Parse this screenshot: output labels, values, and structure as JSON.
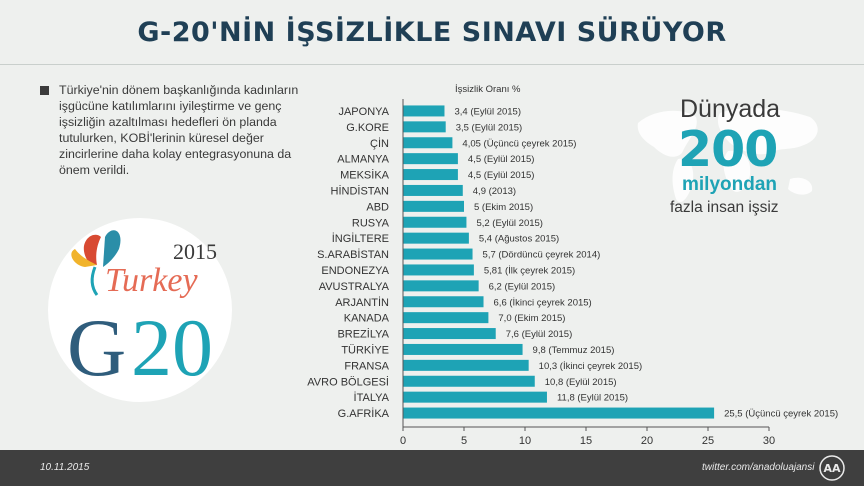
{
  "title": "G-20'NİN İŞSİZLİKLE SINAVI SÜRÜYOR",
  "description": "Türkiye'nin dönem başkanlığında kadınların işgücüne katılımlarını iyileştirme ve genç işsizliğin azaltılması hedefleri ön planda tutulurken, KOBİ'lerinin küresel değer zincirlerine daha kolay entegrasyonuna da önem verildi.",
  "logo": {
    "year": "2015",
    "word": "Turkey",
    "g": "G",
    "num": "20"
  },
  "callout": {
    "line1": "Dünyada",
    "line2": "200",
    "line3": "milyondan",
    "line4": "fazla insan işsiz"
  },
  "footer": {
    "date": "10.11.2015",
    "twitter": "twitter.com/anadoluajansi",
    "agency_logo": "AA"
  },
  "colors": {
    "bar": "#1ea3b5",
    "title": "#1f3f55",
    "footer": "#3f3f3f"
  },
  "chart_data": {
    "type": "bar",
    "orientation": "horizontal",
    "header": "İşsizlik Oranı %",
    "xlim": [
      0,
      30
    ],
    "ticks": [
      0,
      5,
      10,
      15,
      20,
      25,
      30
    ],
    "grid": false,
    "categories": [
      "JAPONYA",
      "G.KORE",
      "ÇİN",
      "ALMANYA",
      "MEKSİKA",
      "HİNDİSTAN",
      "ABD",
      "RUSYA",
      "İNGİLTERE",
      "S.ARABİSTAN",
      "ENDONEZYA",
      "AVUSTRALYA",
      "ARJANTİN",
      "KANADA",
      "BREZİLYA",
      "TÜRKİYE",
      "FRANSA",
      "AVRO BÖLGESİ",
      "İTALYA",
      "G.AFRİKA"
    ],
    "values": [
      3.4,
      3.5,
      4.05,
      4.5,
      4.5,
      4.9,
      5,
      5.2,
      5.4,
      5.7,
      5.81,
      6.2,
      6.6,
      7.0,
      7.6,
      9.8,
      10.3,
      10.8,
      11.8,
      25.5
    ],
    "labels": [
      "3,4 (Eylül 2015)",
      "3,5 (Eylül 2015)",
      "4,05 (Üçüncü çeyrek 2015)",
      "4,5 (Eylül 2015)",
      "4,5 (Eylül 2015)",
      "4,9 (2013)",
      "5 (Ekim 2015)",
      "5,2 (Eylül 2015)",
      "5,4 (Ağustos 2015)",
      "5,7 (Dördüncü çeyrek 2014)",
      "5,81 (İlk çeyrek 2015)",
      "6,2 (Eylül 2015)",
      "6,6 (İkinci çeyrek 2015)",
      "7,0 (Ekim 2015)",
      "7,6 (Eylül 2015)",
      "9,8 (Temmuz 2015)",
      "10,3 (İkinci çeyrek 2015)",
      "10,8 (Eylül 2015)",
      "11,8 (Eylül 2015)",
      "25,5 (Üçüncü çeyrek 2015)"
    ]
  }
}
